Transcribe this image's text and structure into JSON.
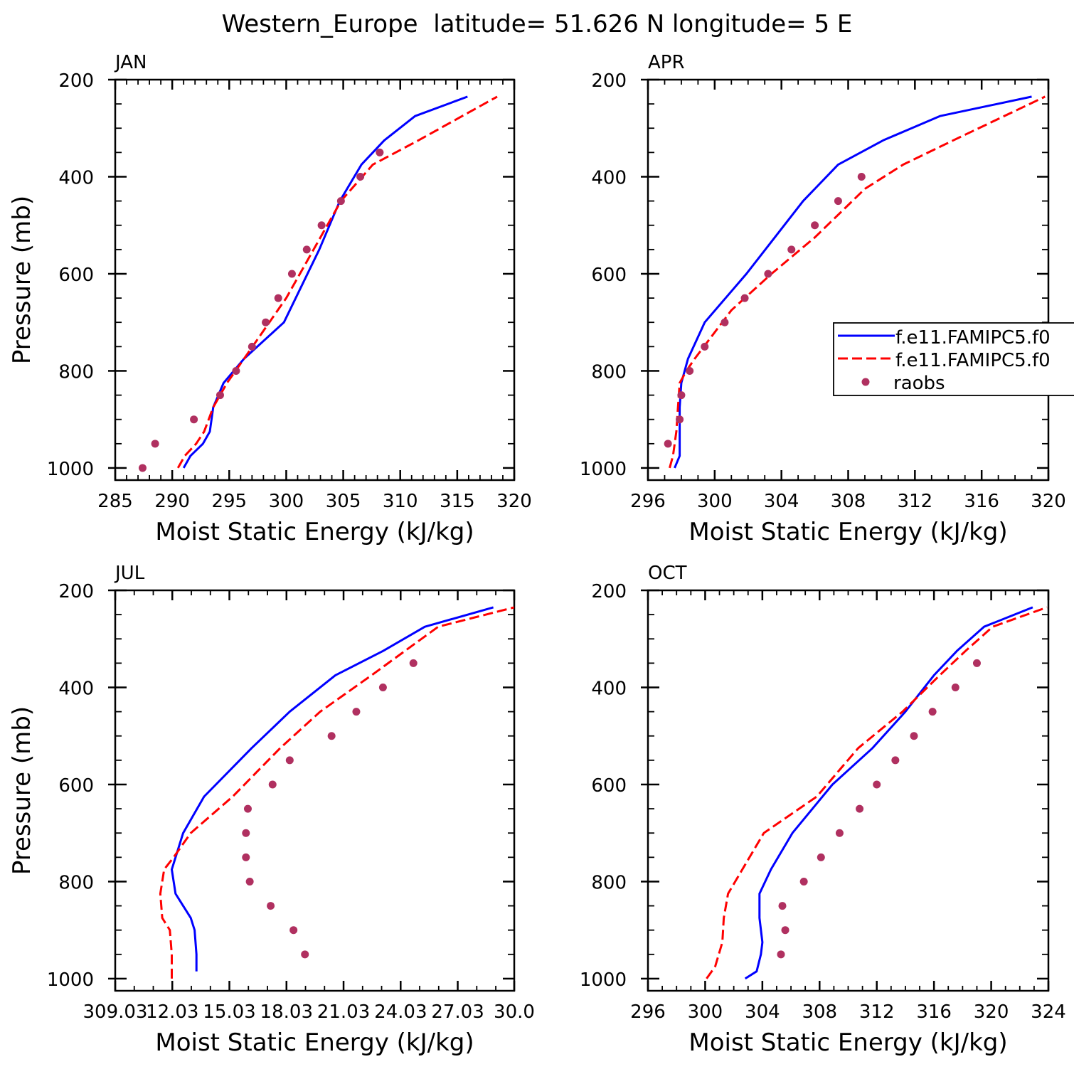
{
  "figure": {
    "title": "Western_Europe  latitude= 51.626 N longitude= 5 E"
  },
  "legend": {
    "entries": [
      {
        "label": "f.e11.FAMIPC5.f0",
        "style": "solid",
        "color": "#0000ff"
      },
      {
        "label": "f.e11.FAMIPC5.f0",
        "style": "dashed",
        "color": "#ff0000"
      },
      {
        "label": "raobs",
        "style": "dot",
        "color": "#b03060"
      }
    ]
  },
  "chart_data": [
    {
      "type": "line",
      "title": "JAN",
      "xlabel": "Moist Static Energy (kJ/kg)",
      "ylabel": "Pressure (mb)",
      "xlim": [
        285,
        320
      ],
      "ylim": [
        1000,
        200
      ],
      "xticks": [
        285,
        290,
        295,
        300,
        305,
        310,
        315,
        320
      ],
      "xtick_labels": [
        "285",
        "290",
        "295",
        "300",
        "305",
        "310",
        "315",
        "320"
      ],
      "xminor": 1,
      "yticks": [
        200,
        400,
        600,
        800,
        1000
      ],
      "ytick_labels": [
        "200",
        "400",
        "600",
        "800",
        "1000"
      ],
      "series": [
        {
          "style": "solid",
          "color": "#0000ff",
          "x": [
            291.0,
            291.6,
            292.7,
            293.3,
            293.6,
            294.5,
            296.3,
            299.8,
            302.9,
            304.7,
            306.6,
            308.6,
            311.3,
            315.9
          ],
          "y": [
            1000,
            975,
            950,
            925,
            875,
            825,
            775,
            700,
            550,
            450,
            375,
            325,
            275,
            235
          ]
        },
        {
          "style": "dashed",
          "color": "#ff0000",
          "x": [
            290.5,
            291.1,
            292.1,
            292.8,
            293.6,
            294.8,
            296.3,
            300.0,
            302.4,
            304.8,
            307.6,
            311.6,
            318.5
          ],
          "y": [
            1000,
            975,
            950,
            925,
            875,
            825,
            775,
            650,
            550,
            450,
            375,
            325,
            235
          ]
        },
        {
          "style": "dot",
          "color": "#b03060",
          "x": [
            287.4,
            288.5,
            291.9,
            294.2,
            295.6,
            297.0,
            298.2,
            299.3,
            300.5,
            301.8,
            303.1,
            304.8,
            306.5,
            308.2
          ],
          "y": [
            1000,
            950,
            900,
            850,
            800,
            750,
            700,
            650,
            600,
            550,
            500,
            450,
            400,
            350
          ]
        }
      ]
    },
    {
      "type": "line",
      "title": "APR",
      "xlabel": "Moist Static Energy (kJ/kg)",
      "ylabel": "",
      "xlim": [
        296,
        320
      ],
      "ylim": [
        1000,
        200
      ],
      "xticks": [
        296,
        300,
        304,
        308,
        312,
        316,
        320
      ],
      "xtick_labels": [
        "296",
        "300",
        "304",
        "308",
        "312",
        "316",
        "320"
      ],
      "xminor": 1,
      "yticks": [
        200,
        400,
        600,
        800,
        1000
      ],
      "ytick_labels": [
        "200",
        "400",
        "600",
        "800",
        "1000"
      ],
      "series": [
        {
          "style": "solid",
          "color": "#0000ff",
          "x": [
            297.6,
            297.9,
            297.9,
            298.0,
            298.4,
            299.4,
            301.9,
            303.6,
            305.3,
            307.4,
            310.1,
            313.5,
            319.0
          ],
          "y": [
            1000,
            975,
            875,
            825,
            775,
            700,
            600,
            525,
            450,
            375,
            325,
            275,
            235
          ]
        },
        {
          "style": "dashed",
          "color": "#ff0000",
          "x": [
            297.3,
            297.5,
            297.7,
            297.8,
            297.9,
            298.3,
            298.8,
            301.0,
            303.4,
            306.0,
            309.0,
            311.3,
            314.3,
            319.8
          ],
          "y": [
            1000,
            975,
            925,
            875,
            825,
            800,
            775,
            675,
            600,
            525,
            425,
            375,
            325,
            235
          ]
        },
        {
          "style": "dot",
          "color": "#b03060",
          "x": [
            297.2,
            297.9,
            298.0,
            298.5,
            299.4,
            300.6,
            301.8,
            303.2,
            304.6,
            306.0,
            307.4,
            308.8
          ],
          "y": [
            950,
            900,
            850,
            800,
            750,
            700,
            650,
            600,
            550,
            500,
            450,
            400
          ]
        }
      ]
    },
    {
      "type": "line",
      "title": "JUL",
      "xlabel": "Moist Static Energy (kJ/kg)",
      "ylabel": "Pressure (mb)",
      "xlim": [
        309.03,
        330.0
      ],
      "ylim": [
        1000,
        200
      ],
      "xticks": [
        309.03,
        312.03,
        315.03,
        318.03,
        321.03,
        324.03,
        327.03,
        330.0
      ],
      "xtick_labels": [
        "309.03",
        "12.03",
        "15.03",
        "18.03",
        "21.03",
        "24.03",
        "27.03",
        "30.0"
      ],
      "xminor": 1,
      "yticks": [
        200,
        400,
        600,
        800,
        1000
      ],
      "ytick_labels": [
        "200",
        "400",
        "600",
        "800",
        "1000"
      ],
      "series": [
        {
          "style": "solid",
          "color": "#0000ff",
          "x": [
            313.3,
            313.3,
            313.2,
            313.0,
            312.6,
            312.2,
            312.0,
            312.6,
            313.7,
            316.2,
            318.2,
            320.6,
            323.1,
            325.3,
            328.9
          ],
          "y": [
            985,
            950,
            900,
            875,
            850,
            825,
            775,
            700,
            625,
            525,
            450,
            375,
            325,
            275,
            235
          ]
        },
        {
          "style": "dashed",
          "color": "#ff0000",
          "x": [
            312.0,
            312.0,
            311.9,
            311.5,
            311.4,
            311.6,
            312.1,
            313.0,
            315.2,
            317.7,
            319.8,
            322.5,
            326.0,
            330.0
          ],
          "y": [
            1000,
            950,
            900,
            875,
            825,
            775,
            750,
            700,
            625,
            525,
            450,
            375,
            275,
            235
          ]
        },
        {
          "style": "dot",
          "color": "#b03060",
          "x": [
            319.0,
            318.4,
            317.2,
            316.1,
            315.9,
            315.9,
            316.0,
            317.3,
            318.2,
            320.4,
            321.7,
            323.1,
            324.7
          ],
          "y": [
            950,
            900,
            850,
            800,
            750,
            700,
            650,
            600,
            550,
            500,
            450,
            400,
            350
          ]
        }
      ]
    },
    {
      "type": "line",
      "title": "OCT",
      "xlabel": "Moist Static Energy (kJ/kg)",
      "ylabel": "",
      "xlim": [
        296,
        324
      ],
      "ylim": [
        1000,
        200
      ],
      "xticks": [
        296,
        300,
        304,
        308,
        312,
        316,
        320,
        324
      ],
      "xtick_labels": [
        "296",
        "300",
        "304",
        "308",
        "312",
        "316",
        "320",
        "324"
      ],
      "xminor": 1,
      "yticks": [
        200,
        400,
        600,
        800,
        1000
      ],
      "ytick_labels": [
        "200",
        "400",
        "600",
        "800",
        "1000"
      ],
      "series": [
        {
          "style": "solid",
          "color": "#0000ff",
          "x": [
            302.8,
            303.6,
            303.9,
            304.0,
            303.8,
            303.8,
            304.6,
            306.1,
            308.9,
            311.7,
            314.0,
            316.0,
            317.6,
            319.5,
            322.9
          ],
          "y": [
            1000,
            985,
            950,
            925,
            875,
            825,
            775,
            700,
            600,
            525,
            450,
            375,
            325,
            275,
            235
          ]
        },
        {
          "style": "dashed",
          "color": "#ff0000",
          "x": [
            300.1,
            300.7,
            301.2,
            301.3,
            301.6,
            302.6,
            304.1,
            307.8,
            310.7,
            313.8,
            316.4,
            318.2,
            320.1,
            323.9
          ],
          "y": [
            1000,
            975,
            925,
            875,
            825,
            775,
            700,
            625,
            525,
            450,
            375,
            325,
            275,
            235
          ]
        },
        {
          "style": "dot",
          "color": "#b03060",
          "x": [
            305.3,
            305.6,
            305.4,
            306.9,
            308.1,
            309.4,
            310.8,
            312.0,
            313.3,
            314.6,
            315.9,
            317.5,
            319.0
          ],
          "y": [
            950,
            900,
            850,
            800,
            750,
            700,
            650,
            600,
            550,
            500,
            450,
            400,
            350
          ]
        }
      ]
    }
  ]
}
